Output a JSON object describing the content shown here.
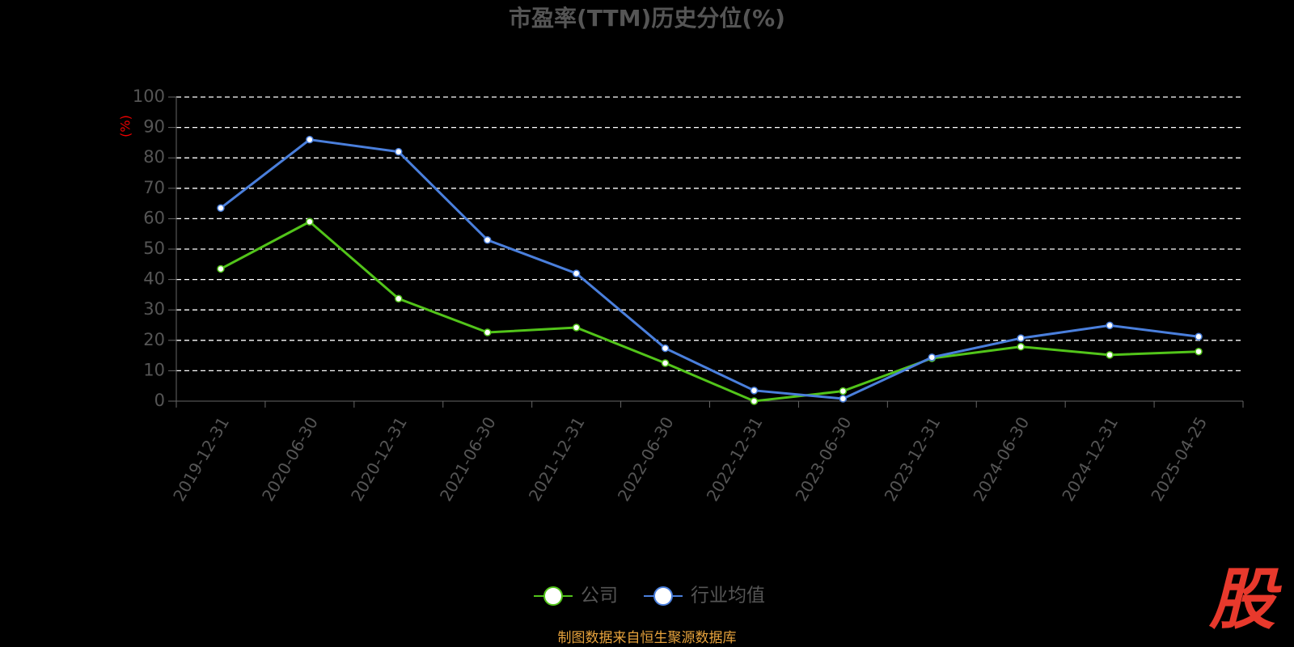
{
  "chart_data": {
    "type": "line",
    "title": "市盈率(TTM)历史分位(%)",
    "y_label": "(%)",
    "categories": [
      "2019-12-31",
      "2020-06-30",
      "2020-12-31",
      "2021-06-30",
      "2021-12-31",
      "2022-06-30",
      "2022-12-31",
      "2023-06-30",
      "2023-12-31",
      "2024-06-30",
      "2024-12-31",
      "2025-04-25"
    ],
    "series": [
      {
        "name": "公司",
        "color": "#52c41a",
        "values": [
          43.5,
          59,
          33.7,
          22.6,
          24.2,
          12.5,
          0,
          3.3,
          14.1,
          17.9,
          15.2,
          16.3
        ]
      },
      {
        "name": "行业均值",
        "color": "#4a7fdc",
        "values": [
          63.5,
          86,
          82,
          53,
          42,
          17.4,
          3.5,
          0.8,
          14.4,
          20.7,
          24.9,
          21.2
        ]
      }
    ],
    "ylim": [
      0,
      100
    ],
    "yticks": [
      0,
      10,
      20,
      30,
      40,
      50,
      60,
      70,
      80,
      90,
      100
    ],
    "grid": true,
    "source": "制图数据来自恒生聚源数据库",
    "logo": "股"
  }
}
